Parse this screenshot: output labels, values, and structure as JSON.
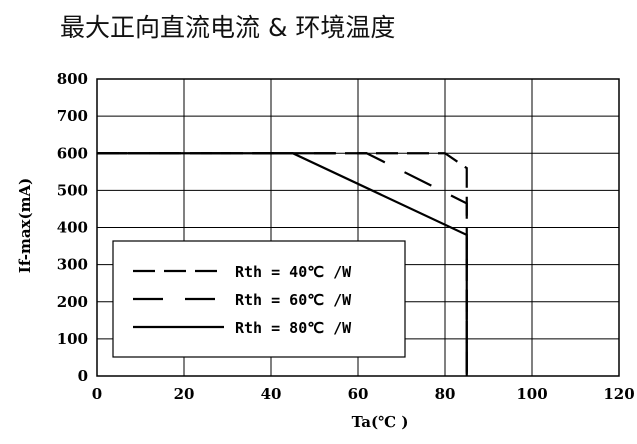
{
  "title": "最大正向直流电流 & 环境温度",
  "chart_data": {
    "type": "line",
    "title": "最大正向直流电流 & 环境温度",
    "xlabel": "Ta(℃ )",
    "ylabel": "If-max(mA)",
    "xlim": [
      0,
      120
    ],
    "ylim": [
      0,
      800
    ],
    "x_ticks": [
      "0",
      "20",
      "40",
      "60",
      "80",
      "100",
      "120"
    ],
    "y_ticks": [
      "0",
      "100",
      "200",
      "300",
      "400",
      "500",
      "600",
      "700",
      "800"
    ],
    "grid": true,
    "legend_position": "bottom-left",
    "series": [
      {
        "name": "Rth = 40℃ /W",
        "style": "dashed",
        "x": [
          0,
          80,
          85,
          85
        ],
        "y": [
          600,
          600,
          560,
          0
        ]
      },
      {
        "name": "Rth = 60℃ /W",
        "style": "long-dashed",
        "x": [
          0,
          62,
          85,
          85
        ],
        "y": [
          600,
          600,
          465,
          0
        ]
      },
      {
        "name": "Rth = 80℃ /W",
        "style": "solid",
        "x": [
          0,
          45,
          85,
          85
        ],
        "y": [
          600,
          600,
          380,
          0
        ]
      }
    ]
  }
}
